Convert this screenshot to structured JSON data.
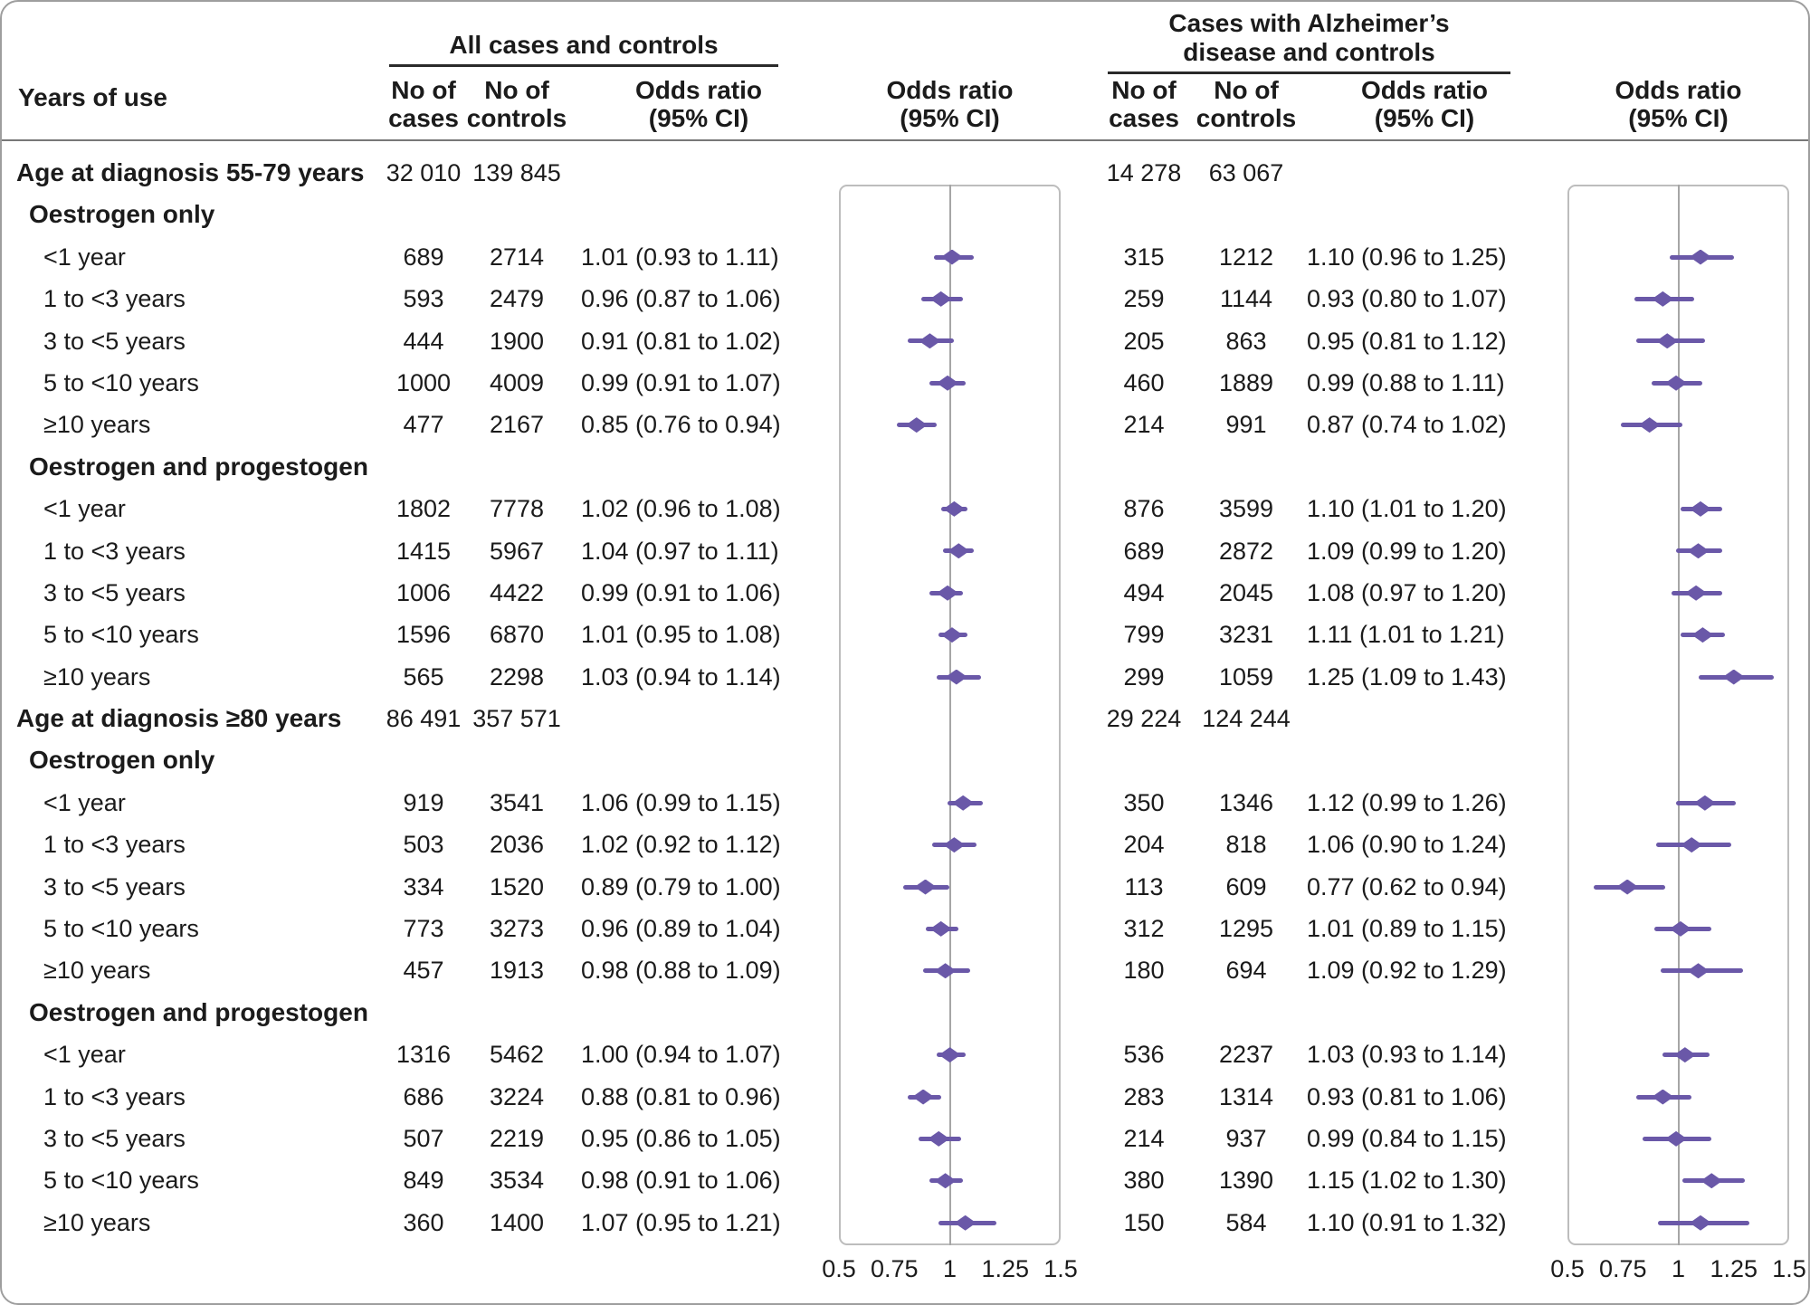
{
  "meta": {
    "marker_color": "#6a58a8",
    "reference_line_color": "#a6a6a6",
    "plot_border_color": "#bdbdbd",
    "rule_color": "#787878",
    "page_border_color": "#9e9e9e",
    "text_color": "#1b1b1b",
    "background_color": "#ffffff"
  },
  "header": {
    "years_of_use": "Years of use",
    "panel1_title": "All cases and controls",
    "panel2_title_line1": "Cases with Alzheimer’s",
    "panel2_title_line2": "disease and controls",
    "col_cases": {
      "line1": "No of",
      "line2": "cases"
    },
    "col_controls": {
      "line1": "No of",
      "line2": "controls"
    },
    "col_odds_ratio": {
      "line1": "Odds ratio",
      "line2": "(95% CI)"
    }
  },
  "chart_data": {
    "type": "forest",
    "title": "",
    "panels": [
      "All cases and controls",
      "Cases with Alzheimer’s disease and controls"
    ],
    "axis": {
      "min": 0.5,
      "max": 1.5,
      "reference": 1,
      "ticks": [
        "0.5",
        "0.75",
        "1",
        "1.25",
        "1.5"
      ],
      "tick_values": [
        0.5,
        0.75,
        1,
        1.25,
        1.5
      ]
    },
    "rows": [
      {
        "type": "group",
        "label": "Age at diagnosis 55-79 years",
        "all": {
          "cases": "32 010",
          "controls": "139 845"
        },
        "alz": {
          "cases": "14 278",
          "controls": "63 067"
        }
      },
      {
        "type": "subgroup",
        "label": "Oestrogen only"
      },
      {
        "type": "data",
        "label": "<1 year",
        "all": {
          "cases": "689",
          "controls": "2714",
          "or": 1.01,
          "lo": 0.93,
          "hi": 1.11,
          "text": "1.01 (0.93 to 1.11)"
        },
        "alz": {
          "cases": "315",
          "controls": "1212",
          "or": 1.1,
          "lo": 0.96,
          "hi": 1.25,
          "text": "1.10 (0.96 to 1.25)"
        }
      },
      {
        "type": "data",
        "label": "1 to <3 years",
        "all": {
          "cases": "593",
          "controls": "2479",
          "or": 0.96,
          "lo": 0.87,
          "hi": 1.06,
          "text": "0.96 (0.87 to 1.06)"
        },
        "alz": {
          "cases": "259",
          "controls": "1144",
          "or": 0.93,
          "lo": 0.8,
          "hi": 1.07,
          "text": "0.93 (0.80 to 1.07)"
        }
      },
      {
        "type": "data",
        "label": "3 to <5 years",
        "all": {
          "cases": "444",
          "controls": "1900",
          "or": 0.91,
          "lo": 0.81,
          "hi": 1.02,
          "text": "0.91 (0.81 to 1.02)"
        },
        "alz": {
          "cases": "205",
          "controls": "863",
          "or": 0.95,
          "lo": 0.81,
          "hi": 1.12,
          "text": "0.95 (0.81 to 1.12)"
        }
      },
      {
        "type": "data",
        "label": "5 to <10 years",
        "all": {
          "cases": "1000",
          "controls": "4009",
          "or": 0.99,
          "lo": 0.91,
          "hi": 1.07,
          "text": "0.99 (0.91 to 1.07)"
        },
        "alz": {
          "cases": "460",
          "controls": "1889",
          "or": 0.99,
          "lo": 0.88,
          "hi": 1.11,
          "text": "0.99 (0.88 to 1.11)"
        }
      },
      {
        "type": "data",
        "label": "≥10 years",
        "all": {
          "cases": "477",
          "controls": "2167",
          "or": 0.85,
          "lo": 0.76,
          "hi": 0.94,
          "text": "0.85 (0.76 to 0.94)"
        },
        "alz": {
          "cases": "214",
          "controls": "991",
          "or": 0.87,
          "lo": 0.74,
          "hi": 1.02,
          "text": "0.87 (0.74 to 1.02)"
        }
      },
      {
        "type": "subgroup",
        "label": "Oestrogen and progestogen"
      },
      {
        "type": "data",
        "label": "<1 year",
        "all": {
          "cases": "1802",
          "controls": "7778",
          "or": 1.02,
          "lo": 0.96,
          "hi": 1.08,
          "text": "1.02 (0.96 to 1.08)"
        },
        "alz": {
          "cases": "876",
          "controls": "3599",
          "or": 1.1,
          "lo": 1.01,
          "hi": 1.2,
          "text": "1.10 (1.01 to 1.20)"
        }
      },
      {
        "type": "data",
        "label": "1 to <3 years",
        "all": {
          "cases": "1415",
          "controls": "5967",
          "or": 1.04,
          "lo": 0.97,
          "hi": 1.11,
          "text": "1.04 (0.97 to 1.11)"
        },
        "alz": {
          "cases": "689",
          "controls": "2872",
          "or": 1.09,
          "lo": 0.99,
          "hi": 1.2,
          "text": "1.09 (0.99 to 1.20)"
        }
      },
      {
        "type": "data",
        "label": "3 to <5 years",
        "all": {
          "cases": "1006",
          "controls": "4422",
          "or": 0.99,
          "lo": 0.91,
          "hi": 1.06,
          "text": "0.99 (0.91 to 1.06)"
        },
        "alz": {
          "cases": "494",
          "controls": "2045",
          "or": 1.08,
          "lo": 0.97,
          "hi": 1.2,
          "text": "1.08 (0.97 to 1.20)"
        }
      },
      {
        "type": "data",
        "label": "5 to <10 years",
        "all": {
          "cases": "1596",
          "controls": "6870",
          "or": 1.01,
          "lo": 0.95,
          "hi": 1.08,
          "text": "1.01 (0.95 to 1.08)"
        },
        "alz": {
          "cases": "799",
          "controls": "3231",
          "or": 1.11,
          "lo": 1.01,
          "hi": 1.21,
          "text": "1.11 (1.01 to 1.21)"
        }
      },
      {
        "type": "data",
        "label": "≥10 years",
        "all": {
          "cases": "565",
          "controls": "2298",
          "or": 1.03,
          "lo": 0.94,
          "hi": 1.14,
          "text": "1.03 (0.94 to 1.14)"
        },
        "alz": {
          "cases": "299",
          "controls": "1059",
          "or": 1.25,
          "lo": 1.09,
          "hi": 1.43,
          "text": "1.25 (1.09 to 1.43)"
        }
      },
      {
        "type": "group",
        "label": "Age at diagnosis ≥80 years",
        "all": {
          "cases": "86 491",
          "controls": "357 571"
        },
        "alz": {
          "cases": "29 224",
          "controls": "124 244"
        }
      },
      {
        "type": "subgroup",
        "label": "Oestrogen only"
      },
      {
        "type": "data",
        "label": "<1 year",
        "all": {
          "cases": "919",
          "controls": "3541",
          "or": 1.06,
          "lo": 0.99,
          "hi": 1.15,
          "text": "1.06 (0.99 to 1.15)"
        },
        "alz": {
          "cases": "350",
          "controls": "1346",
          "or": 1.12,
          "lo": 0.99,
          "hi": 1.26,
          "text": "1.12 (0.99 to 1.26)"
        }
      },
      {
        "type": "data",
        "label": "1 to <3 years",
        "all": {
          "cases": "503",
          "controls": "2036",
          "or": 1.02,
          "lo": 0.92,
          "hi": 1.12,
          "text": "1.02 (0.92 to 1.12)"
        },
        "alz": {
          "cases": "204",
          "controls": "818",
          "or": 1.06,
          "lo": 0.9,
          "hi": 1.24,
          "text": "1.06 (0.90 to 1.24)"
        }
      },
      {
        "type": "data",
        "label": "3 to <5 years",
        "all": {
          "cases": "334",
          "controls": "1520",
          "or": 0.89,
          "lo": 0.79,
          "hi": 1.0,
          "text": "0.89 (0.79 to 1.00)"
        },
        "alz": {
          "cases": "113",
          "controls": "609",
          "or": 0.77,
          "lo": 0.62,
          "hi": 0.94,
          "text": "0.77 (0.62 to 0.94)"
        }
      },
      {
        "type": "data",
        "label": "5 to <10 years",
        "all": {
          "cases": "773",
          "controls": "3273",
          "or": 0.96,
          "lo": 0.89,
          "hi": 1.04,
          "text": "0.96 (0.89 to 1.04)"
        },
        "alz": {
          "cases": "312",
          "controls": "1295",
          "or": 1.01,
          "lo": 0.89,
          "hi": 1.15,
          "text": "1.01 (0.89 to 1.15)"
        }
      },
      {
        "type": "data",
        "label": "≥10 years",
        "all": {
          "cases": "457",
          "controls": "1913",
          "or": 0.98,
          "lo": 0.88,
          "hi": 1.09,
          "text": "0.98 (0.88 to 1.09)"
        },
        "alz": {
          "cases": "180",
          "controls": "694",
          "or": 1.09,
          "lo": 0.92,
          "hi": 1.29,
          "text": "1.09 (0.92 to 1.29)"
        }
      },
      {
        "type": "subgroup",
        "label": "Oestrogen and progestogen"
      },
      {
        "type": "data",
        "label": "<1 year",
        "all": {
          "cases": "1316",
          "controls": "5462",
          "or": 1.0,
          "lo": 0.94,
          "hi": 1.07,
          "text": "1.00 (0.94 to 1.07)"
        },
        "alz": {
          "cases": "536",
          "controls": "2237",
          "or": 1.03,
          "lo": 0.93,
          "hi": 1.14,
          "text": "1.03 (0.93 to 1.14)"
        }
      },
      {
        "type": "data",
        "label": "1 to <3 years",
        "all": {
          "cases": "686",
          "controls": "3224",
          "or": 0.88,
          "lo": 0.81,
          "hi": 0.96,
          "text": "0.88 (0.81 to 0.96)"
        },
        "alz": {
          "cases": "283",
          "controls": "1314",
          "or": 0.93,
          "lo": 0.81,
          "hi": 1.06,
          "text": "0.93 (0.81 to 1.06)"
        }
      },
      {
        "type": "data",
        "label": "3 to <5 years",
        "all": {
          "cases": "507",
          "controls": "2219",
          "or": 0.95,
          "lo": 0.86,
          "hi": 1.05,
          "text": "0.95 (0.86 to 1.05)"
        },
        "alz": {
          "cases": "214",
          "controls": "937",
          "or": 0.99,
          "lo": 0.84,
          "hi": 1.15,
          "text": "0.99 (0.84 to 1.15)"
        }
      },
      {
        "type": "data",
        "label": "5 to <10 years",
        "all": {
          "cases": "849",
          "controls": "3534",
          "or": 0.98,
          "lo": 0.91,
          "hi": 1.06,
          "text": "0.98 (0.91 to 1.06)"
        },
        "alz": {
          "cases": "380",
          "controls": "1390",
          "or": 1.15,
          "lo": 1.02,
          "hi": 1.3,
          "text": "1.15 (1.02 to 1.30)"
        }
      },
      {
        "type": "data",
        "label": "≥10 years",
        "all": {
          "cases": "360",
          "controls": "1400",
          "or": 1.07,
          "lo": 0.95,
          "hi": 1.21,
          "text": "1.07 (0.95 to 1.21)"
        },
        "alz": {
          "cases": "150",
          "controls": "584",
          "or": 1.1,
          "lo": 0.91,
          "hi": 1.32,
          "text": "1.10 (0.91 to 1.32)"
        }
      }
    ]
  }
}
